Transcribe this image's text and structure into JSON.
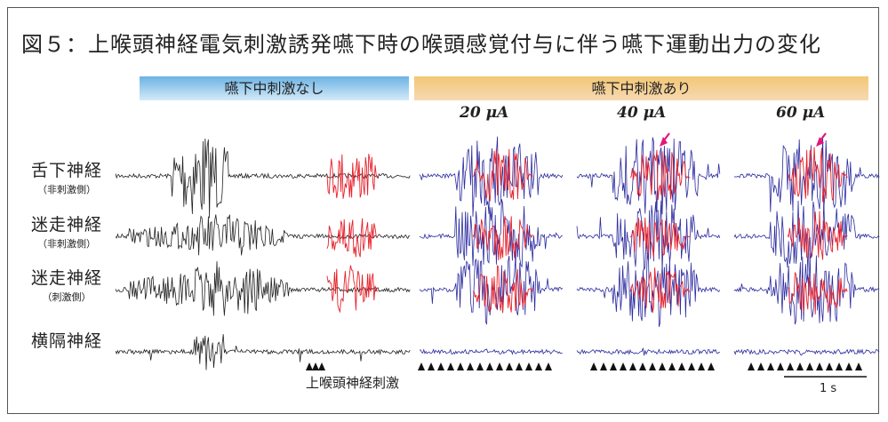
{
  "title": "図５：上喉頭神経電気刺激誘発嚥下時の喉頭感覚付与に伴う嚥下運動出力の変化",
  "conditions": {
    "no_stim": "嚥下中刺激なし",
    "with_stim": "嚥下中刺激あり"
  },
  "amplitudes": [
    "20 μA",
    "40 μA",
    "60 μA"
  ],
  "nerves": [
    {
      "name": "舌下神経",
      "sub": "（非刺激側）"
    },
    {
      "name": "迷走神経",
      "sub": "（非刺激側）"
    },
    {
      "name": "迷走神経",
      "sub": "（刺激側）"
    },
    {
      "name": "横隔神経",
      "sub": ""
    }
  ],
  "stimulus_label": "上喉頭神経刺激",
  "scale_bar_label": "1 s",
  "colors": {
    "control_trace": "#222222",
    "stim_trace": "#2a2aa0",
    "overlay_trace": "#e8202a",
    "arrow": "#e0187a",
    "marker": "#111111"
  },
  "icons": [
    "stimulus-triangle-icon",
    "arrow-down-left-icon"
  ]
}
